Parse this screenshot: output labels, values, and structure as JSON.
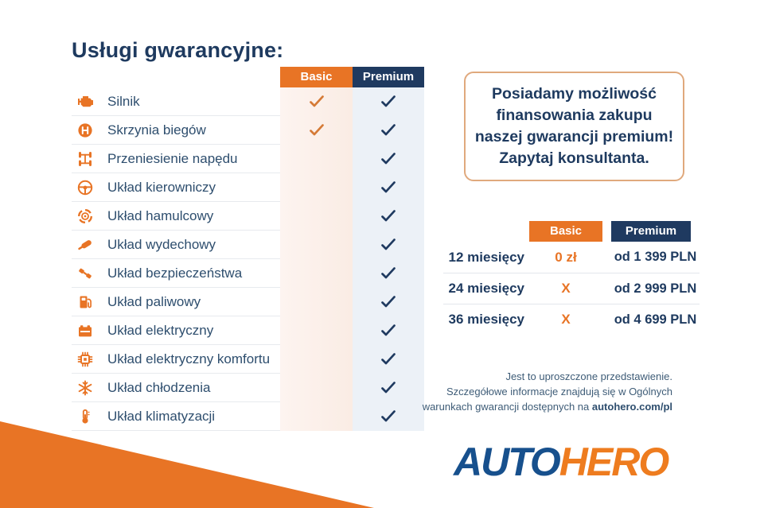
{
  "title": "Usługi gwarancyjne:",
  "colors": {
    "orange": "#E87425",
    "navy": "#1F3A60",
    "check_basic": "#D57A36",
    "check_premium": "#1F3A60",
    "basic_col_bg": "#FBEFE9",
    "premium_col_bg": "#ECF1F7",
    "promo_border": "#E0A97D",
    "logo_blue": "#17508D",
    "logo_orange": "#EE7C1F"
  },
  "warranty_table": {
    "columns": [
      "Basic",
      "Premium"
    ],
    "rows": [
      {
        "label": "Silnik",
        "icon": "engine-icon",
        "basic": true,
        "premium": true
      },
      {
        "label": "Skrzynia biegów",
        "icon": "gearbox-icon",
        "basic": true,
        "premium": true
      },
      {
        "label": "Przeniesienie napędu",
        "icon": "drivetrain-icon",
        "basic": false,
        "premium": true
      },
      {
        "label": "Układ kierowniczy",
        "icon": "steering-wheel-icon",
        "basic": false,
        "premium": true
      },
      {
        "label": "Układ hamulcowy",
        "icon": "brake-disc-icon",
        "basic": false,
        "premium": true
      },
      {
        "label": "Układ wydechowy",
        "icon": "exhaust-icon",
        "basic": false,
        "premium": true
      },
      {
        "label": "Układ bezpieczeństwa",
        "icon": "seatbelt-icon",
        "basic": false,
        "premium": true
      },
      {
        "label": "Układ paliwowy",
        "icon": "fuel-pump-icon",
        "basic": false,
        "premium": true
      },
      {
        "label": "Układ elektryczny",
        "icon": "battery-icon",
        "basic": false,
        "premium": true
      },
      {
        "label": "Układ elektryczny komfortu",
        "icon": "chip-icon",
        "basic": false,
        "premium": true
      },
      {
        "label": "Układ chłodzenia",
        "icon": "snowflake-icon",
        "basic": false,
        "premium": true
      },
      {
        "label": "Układ klimatyzacji",
        "icon": "thermometer-icon",
        "basic": false,
        "premium": true
      }
    ]
  },
  "promo_box": {
    "text": "Posiadamy możliwość\nfinansowania zakupu\nnaszej gwarancji premium!\nZapytaj konsultanta."
  },
  "pricing_table": {
    "columns": [
      "Basic",
      "Premium"
    ],
    "rows": [
      {
        "period": "12 miesięcy",
        "basic": "0 zł",
        "premium": "od 1 399 PLN"
      },
      {
        "period": "24 miesięcy",
        "basic": "X",
        "premium": "od 2 999 PLN"
      },
      {
        "period": "36 miesięcy",
        "basic": "X",
        "premium": "od 4 699 PLN"
      }
    ]
  },
  "disclaimer": {
    "line1": "Jest to uproszczone przedstawienie.",
    "line2": "Szczegółowe informacje znajdują się w Ogólnych",
    "line3_prefix": "warunkach gwarancji dostępnych na ",
    "line3_link": "autohero.com/pl"
  },
  "logo": {
    "part1": "AUTO",
    "part2": "HERO"
  }
}
